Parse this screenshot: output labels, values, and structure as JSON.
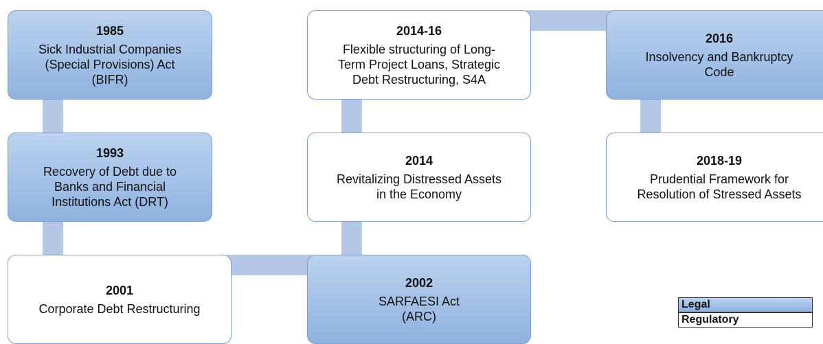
{
  "nodes": [
    {
      "year": "1985",
      "lines": [
        "Sick Industrial Companies",
        "(Special Provisions) Act",
        "(BIFR)"
      ],
      "color": "blue"
    },
    {
      "year": "1993",
      "lines": [
        "Recovery of Debt due to",
        "Banks and Financial",
        "Institutions Act (DRT)"
      ],
      "color": "blue"
    },
    {
      "year": "2001",
      "lines": [
        "Corporate Debt Restructuring"
      ],
      "color": "white"
    },
    {
      "year": "2002",
      "lines": [
        "SARFAESI Act",
        "(ARC)"
      ],
      "color": "blue"
    },
    {
      "year": "2014",
      "lines": [
        "Revitalizing Distressed Assets",
        "in the Economy"
      ],
      "color": "white"
    },
    {
      "year": "2014-16",
      "lines": [
        "Flexible structuring of Long-",
        "Term Project Loans, Strategic",
        "Debt Restructuring, S4A"
      ],
      "color": "white"
    },
    {
      "year": "2016",
      "lines": [
        "Insolvency and Bankruptcy",
        "Code"
      ],
      "color": "blue"
    },
    {
      "year": "2018-19",
      "lines": [
        "Prudential Framework for",
        "Resolution of Stressed Assets"
      ],
      "color": "white"
    }
  ],
  "legend": [
    {
      "label": "Legal",
      "color": "blue"
    },
    {
      "label": "Regulatory",
      "color": "white"
    }
  ]
}
